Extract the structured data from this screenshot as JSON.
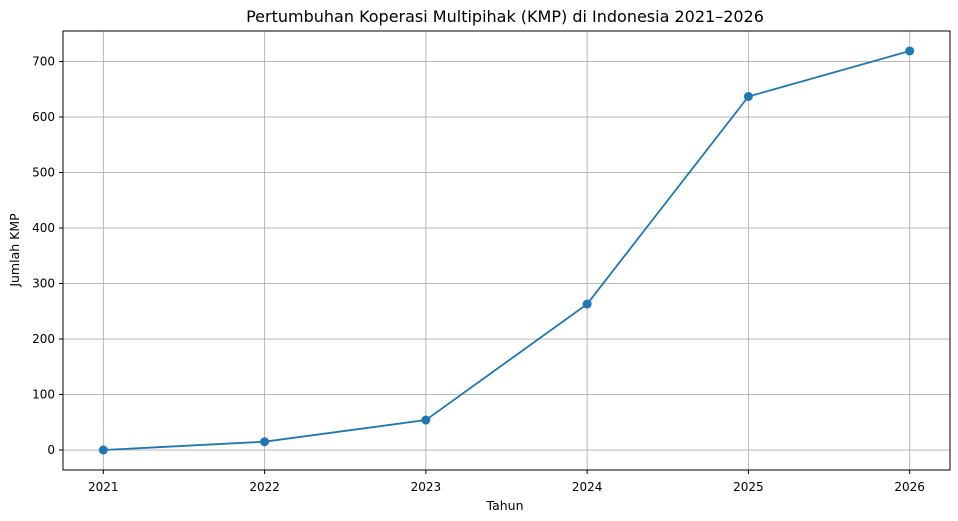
{
  "chart_data": {
    "type": "line",
    "title": "Pertumbuhan Koperasi Multipihak (KMP) di Indonesia 2021–2026",
    "xlabel": "Tahun",
    "ylabel": "Jumlah KMP",
    "categories": [
      "2021",
      "2022",
      "2023",
      "2024",
      "2025",
      "2026"
    ],
    "series": [
      {
        "values": [
          0,
          15,
          54,
          263,
          637,
          719
        ]
      }
    ],
    "yticks": [
      0,
      100,
      200,
      300,
      400,
      500,
      600,
      700
    ],
    "ylim": [
      -36,
      755
    ],
    "xlim": [
      2020.75,
      2026.25
    ],
    "grid": true,
    "line_color": "#1f77b4",
    "marker": "circle"
  }
}
